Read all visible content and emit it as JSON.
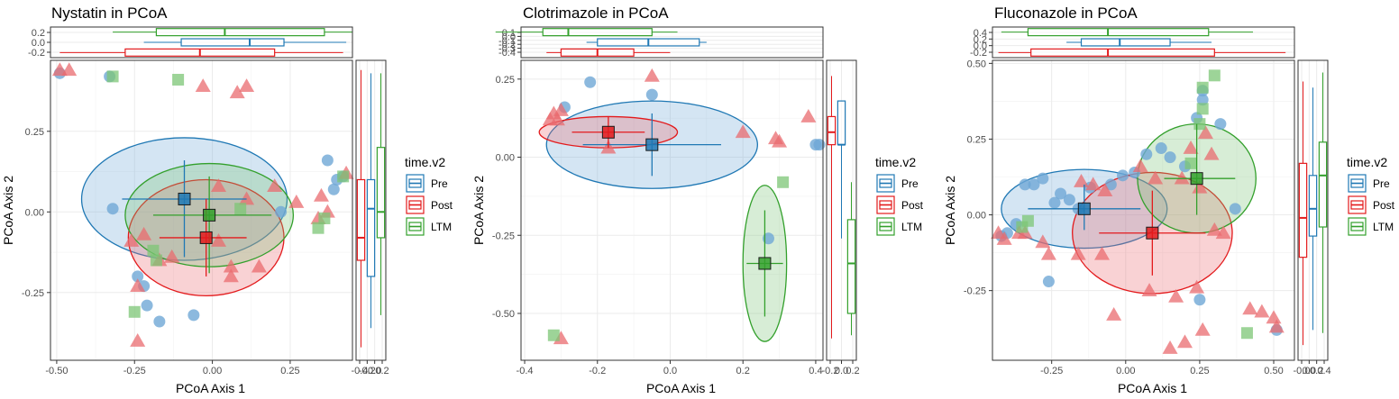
{
  "colors": {
    "Pre": "#1f78b4",
    "Post": "#e31a1c",
    "LTM": "#33a02c",
    "Pre_fill": "#6fa8d6",
    "Post_fill": "#ea6b6f",
    "LTM_fill": "#7cc576"
  },
  "legend": {
    "title": "time.v2",
    "items": [
      "Pre",
      "Post",
      "LTM"
    ]
  },
  "chart_data": [
    {
      "type": "scatter",
      "title": "Nystatin in PCoA",
      "xlabel": "PCoA Axis 1",
      "ylabel": "PCoA Axis 2",
      "xlim": [
        -0.52,
        0.45
      ],
      "ylim": [
        -0.46,
        0.47
      ],
      "xticks": [
        -0.5,
        -0.25,
        0.0,
        0.25
      ],
      "xtick_labels": [
        "-0.50",
        "-0.25",
        "0.00",
        "0.25"
      ],
      "yticks": [
        -0.25,
        0.0,
        0.25
      ],
      "ytick_labels": [
        "-0.25",
        "0.00",
        "0.25"
      ],
      "top_ticks": [
        0.2,
        0.0,
        -0.2
      ],
      "top_tick_labels": [
        "0.2",
        "0.0",
        "-0.2"
      ],
      "right_tick_labels": [
        "-0.4",
        "-0.2",
        "0.0",
        "0.2"
      ],
      "series": [
        {
          "name": "Pre",
          "shape": "circle",
          "points": [
            [
              -0.49,
              0.43
            ],
            [
              -0.33,
              0.42
            ],
            [
              -0.32,
              0.01
            ],
            [
              -0.24,
              -0.2
            ],
            [
              -0.22,
              -0.23
            ],
            [
              -0.21,
              -0.29
            ],
            [
              -0.17,
              -0.34
            ],
            [
              -0.06,
              -0.32
            ],
            [
              0.22,
              0.0
            ],
            [
              0.37,
              0.16
            ],
            [
              0.39,
              0.07
            ],
            [
              0.4,
              0.1
            ],
            [
              0.42,
              0.11
            ]
          ],
          "centroid": [
            -0.09,
            0.04
          ],
          "err_x": [
            -0.29,
            0.11
          ],
          "err_y": [
            -0.14,
            0.16
          ],
          "ellipse": {
            "cx": -0.09,
            "cy": 0.04,
            "rx": 0.33,
            "ry": 0.19,
            "rot": 0
          }
        },
        {
          "name": "Post",
          "shape": "triangle",
          "points": [
            [
              -0.49,
              0.44
            ],
            [
              -0.46,
              0.44
            ],
            [
              -0.03,
              0.39
            ],
            [
              0.08,
              0.37
            ],
            [
              0.11,
              0.39
            ],
            [
              0.02,
              0.08
            ],
            [
              0.2,
              0.08
            ],
            [
              0.11,
              0.04
            ],
            [
              0.02,
              -0.09
            ],
            [
              0.06,
              -0.17
            ],
            [
              0.06,
              -0.2
            ],
            [
              0.15,
              -0.17
            ],
            [
              -0.24,
              -0.23
            ],
            [
              -0.26,
              -0.09
            ],
            [
              -0.22,
              -0.07
            ],
            [
              -0.17,
              -0.15
            ],
            [
              -0.24,
              -0.4
            ],
            [
              -0.13,
              -0.14
            ],
            [
              0.34,
              -0.02
            ],
            [
              0.35,
              0.05
            ],
            [
              0.37,
              0.0
            ],
            [
              0.43,
              0.12
            ],
            [
              0.27,
              0.03
            ]
          ],
          "centroid": [
            -0.02,
            -0.08
          ],
          "err_x": [
            -0.17,
            0.11
          ],
          "err_y": [
            -0.2,
            0.04
          ],
          "ellipse": {
            "cx": -0.02,
            "cy": -0.08,
            "rx": 0.25,
            "ry": 0.18,
            "rot": 0
          }
        },
        {
          "name": "LTM",
          "shape": "square",
          "points": [
            [
              -0.32,
              0.42
            ],
            [
              -0.11,
              0.41
            ],
            [
              -0.25,
              -0.31
            ],
            [
              -0.18,
              -0.15
            ],
            [
              0.09,
              0.01
            ],
            [
              0.36,
              -0.02
            ],
            [
              0.34,
              -0.05
            ],
            [
              0.42,
              0.11
            ],
            [
              -0.19,
              -0.12
            ]
          ],
          "centroid": [
            -0.01,
            -0.01
          ],
          "err_x": [
            -0.19,
            0.19
          ],
          "err_y": [
            -0.19,
            0.11
          ],
          "ellipse": {
            "cx": -0.01,
            "cy": -0.01,
            "rx": 0.27,
            "ry": 0.16,
            "rot": 0
          }
        }
      ],
      "top_box": {
        "Pre": [
          -0.22,
          -0.1,
          0.12,
          0.23,
          0.43
        ],
        "Post": [
          -0.49,
          -0.28,
          -0.04,
          0.2,
          0.42
        ],
        "LTM": [
          -0.32,
          -0.18,
          0.04,
          0.36,
          0.45
        ]
      },
      "right_box": {
        "Pre": [
          -0.36,
          -0.2,
          0.01,
          0.1,
          0.43
        ],
        "Post": [
          -0.42,
          -0.15,
          -0.08,
          0.1,
          0.44
        ],
        "LTM": [
          -0.32,
          -0.08,
          0.0,
          0.2,
          0.43
        ]
      }
    },
    {
      "type": "scatter",
      "title": "Clotrimazole in PCoA",
      "xlabel": "PCoA Axis 1",
      "ylabel": "PCoA Axis 2",
      "xlim": [
        -0.41,
        0.42
      ],
      "ylim": [
        -0.65,
        0.31
      ],
      "xticks": [
        -0.4,
        -0.2,
        0.0,
        0.2,
        0.4
      ],
      "xtick_labels": [
        "-0.4",
        "-0.2",
        "0.0",
        "0.2",
        "0.4"
      ],
      "yticks": [
        0.25,
        0.0,
        -0.25,
        -0.5
      ],
      "ytick_labels": [
        "0.25",
        "0.00",
        "-0.25",
        "-0.50"
      ],
      "top_ticks": [
        0.1,
        0.0,
        -0.1,
        -0.2,
        -0.3,
        -0.4
      ],
      "top_tick_labels": [
        "0.1",
        "0.0",
        "-0.1",
        "-0.2",
        "-0.3",
        "-0.4"
      ],
      "right_tick_labels": [
        "-0.2",
        "0.0",
        "0.2"
      ],
      "series": [
        {
          "name": "Pre",
          "shape": "circle",
          "points": [
            [
              -0.29,
              0.16
            ],
            [
              -0.22,
              0.24
            ],
            [
              -0.05,
              0.2
            ],
            [
              0.27,
              -0.26
            ],
            [
              0.4,
              0.04
            ],
            [
              0.41,
              0.04
            ]
          ],
          "centroid": [
            -0.05,
            0.04
          ],
          "err_x": [
            -0.24,
            0.14
          ],
          "err_y": [
            -0.06,
            0.14
          ],
          "ellipse": {
            "cx": -0.05,
            "cy": 0.04,
            "rx": 0.29,
            "ry": 0.14,
            "rot": 0
          }
        },
        {
          "name": "Post",
          "shape": "triangle",
          "points": [
            [
              -0.32,
              0.14
            ],
            [
              -0.31,
              0.12
            ],
            [
              -0.3,
              0.15
            ],
            [
              -0.33,
              0.12
            ],
            [
              -0.17,
              0.03
            ],
            [
              -0.05,
              0.26
            ],
            [
              0.2,
              0.08
            ],
            [
              0.29,
              0.06
            ],
            [
              0.3,
              0.05
            ],
            [
              0.38,
              0.13
            ],
            [
              -0.3,
              -0.58
            ]
          ],
          "centroid": [
            -0.17,
            0.08
          ],
          "err_x": [
            -0.27,
            -0.07
          ],
          "err_y": [
            0.03,
            0.13
          ],
          "ellipse": {
            "cx": -0.17,
            "cy": 0.08,
            "rx": 0.19,
            "ry": 0.05,
            "rot": 0
          }
        },
        {
          "name": "LTM",
          "shape": "square",
          "points": [
            [
              0.31,
              -0.08
            ],
            [
              -0.32,
              -0.57
            ]
          ],
          "centroid": [
            0.26,
            -0.34
          ],
          "err_x": [
            0.21,
            0.31
          ],
          "err_y": [
            -0.51,
            -0.17
          ],
          "ellipse": {
            "cx": 0.26,
            "cy": -0.34,
            "rx": 0.06,
            "ry": 0.25,
            "rot": 0
          }
        }
      ],
      "top_box": {
        "Pre": [
          -0.23,
          -0.2,
          -0.06,
          0.08,
          0.1
        ],
        "Post": [
          -0.34,
          -0.3,
          -0.2,
          -0.1,
          0.0
        ],
        "LTM": [
          -0.48,
          -0.35,
          -0.28,
          -0.05,
          0.02
        ]
      },
      "right_box": {
        "Pre": [
          -0.26,
          0.04,
          0.04,
          0.18,
          0.18
        ],
        "Post": [
          -0.58,
          0.04,
          0.08,
          0.13,
          0.26
        ],
        "LTM": [
          -0.57,
          -0.5,
          -0.34,
          -0.2,
          -0.08
        ]
      }
    },
    {
      "type": "scatter",
      "title": "Fluconazole in PCoA",
      "xlabel": "PCoA Axis 1",
      "ylabel": "PCoA Axis 2",
      "xlim": [
        -0.45,
        0.57
      ],
      "ylim": [
        -0.48,
        0.51
      ],
      "xticks": [
        -0.25,
        0.0,
        0.25,
        0.5
      ],
      "xtick_labels": [
        "-0.25",
        "0.00",
        "0.25",
        "0.50"
      ],
      "yticks": [
        0.5,
        0.25,
        0.0,
        -0.25
      ],
      "ytick_labels": [
        "0.50",
        "0.25",
        "0.00",
        "-0.25"
      ],
      "top_ticks": [
        0.4,
        0.2,
        0.0,
        -0.2
      ],
      "top_tick_labels": [
        "0.4",
        "0.2",
        "0.0",
        "-0.2"
      ],
      "right_tick_labels": [
        "-0.0",
        "0.0",
        "0.2",
        "0.4"
      ],
      "series": [
        {
          "name": "Pre",
          "shape": "circle",
          "points": [
            [
              -0.42,
              -0.07
            ],
            [
              -0.4,
              -0.06
            ],
            [
              -0.37,
              -0.03
            ],
            [
              -0.34,
              0.1
            ],
            [
              -0.31,
              0.1
            ],
            [
              -0.28,
              0.12
            ],
            [
              -0.24,
              0.04
            ],
            [
              -0.22,
              0.07
            ],
            [
              -0.19,
              0.05
            ],
            [
              -0.16,
              0.02
            ],
            [
              -0.12,
              0.09
            ],
            [
              -0.05,
              0.1
            ],
            [
              -0.01,
              0.13
            ],
            [
              0.03,
              0.14
            ],
            [
              0.07,
              0.2
            ],
            [
              0.12,
              0.22
            ],
            [
              0.15,
              0.19
            ],
            [
              0.2,
              0.16
            ],
            [
              0.24,
              0.32
            ],
            [
              0.26,
              0.38
            ],
            [
              0.26,
              0.41
            ],
            [
              0.32,
              0.3
            ],
            [
              0.37,
              0.02
            ],
            [
              -0.26,
              -0.22
            ],
            [
              0.25,
              -0.28
            ],
            [
              0.51,
              -0.38
            ]
          ],
          "centroid": [
            -0.14,
            0.02
          ],
          "err_x": [
            -0.33,
            0.05
          ],
          "err_y": [
            -0.05,
            0.1
          ],
          "ellipse": {
            "cx": -0.14,
            "cy": 0.02,
            "rx": 0.28,
            "ry": 0.13,
            "rot": 0
          }
        },
        {
          "name": "Post",
          "shape": "triangle",
          "points": [
            [
              -0.43,
              -0.06
            ],
            [
              -0.41,
              -0.08
            ],
            [
              -0.36,
              -0.06
            ],
            [
              -0.34,
              -0.06
            ],
            [
              -0.28,
              -0.09
            ],
            [
              -0.26,
              -0.13
            ],
            [
              -0.11,
              0.1
            ],
            [
              -0.07,
              0.08
            ],
            [
              -0.15,
              0.11
            ],
            [
              0.05,
              0.16
            ],
            [
              0.1,
              0.12
            ],
            [
              0.19,
              0.12
            ],
            [
              0.22,
              0.22
            ],
            [
              0.25,
              0.09
            ],
            [
              0.27,
              0.27
            ],
            [
              0.29,
              0.2
            ],
            [
              0.3,
              -0.05
            ],
            [
              0.33,
              -0.06
            ],
            [
              0.42,
              -0.31
            ],
            [
              0.46,
              -0.32
            ],
            [
              0.5,
              -0.34
            ],
            [
              0.51,
              -0.37
            ],
            [
              -0.04,
              -0.33
            ],
            [
              0.08,
              -0.25
            ],
            [
              0.17,
              -0.27
            ],
            [
              0.24,
              -0.24
            ],
            [
              0.15,
              -0.44
            ],
            [
              0.2,
              -0.42
            ],
            [
              0.26,
              -0.38
            ],
            [
              -0.16,
              -0.13
            ],
            [
              -0.08,
              -0.13
            ]
          ],
          "centroid": [
            0.09,
            -0.06
          ],
          "err_x": [
            -0.09,
            0.27
          ],
          "err_y": [
            -0.2,
            0.08
          ],
          "ellipse": {
            "cx": 0.09,
            "cy": -0.06,
            "rx": 0.27,
            "ry": 0.2,
            "rot": 0
          }
        },
        {
          "name": "LTM",
          "shape": "square",
          "points": [
            [
              0.3,
              0.46
            ],
            [
              0.26,
              0.42
            ],
            [
              0.26,
              0.35
            ],
            [
              0.25,
              0.3
            ],
            [
              0.22,
              0.17
            ],
            [
              -0.35,
              -0.04
            ],
            [
              -0.33,
              -0.02
            ],
            [
              0.41,
              -0.39
            ]
          ],
          "centroid": [
            0.24,
            0.12
          ],
          "err_x": [
            0.13,
            0.37
          ],
          "err_y": [
            0.0,
            0.3
          ],
          "ellipse": {
            "cx": 0.24,
            "cy": 0.12,
            "rx": 0.2,
            "ry": 0.18,
            "rot": 0
          }
        }
      ],
      "top_box": {
        "Pre": [
          -0.2,
          -0.15,
          -0.02,
          0.15,
          0.29
        ],
        "Post": [
          -0.43,
          -0.32,
          -0.06,
          0.3,
          0.54
        ],
        "LTM": [
          -0.42,
          -0.33,
          -0.06,
          0.28,
          0.43
        ]
      },
      "right_box": {
        "Pre": [
          -0.38,
          -0.07,
          0.02,
          0.13,
          0.42
        ],
        "Post": [
          -0.43,
          -0.14,
          -0.01,
          0.17,
          0.44
        ],
        "LTM": [
          -0.39,
          -0.04,
          0.13,
          0.24,
          0.47
        ]
      }
    }
  ]
}
